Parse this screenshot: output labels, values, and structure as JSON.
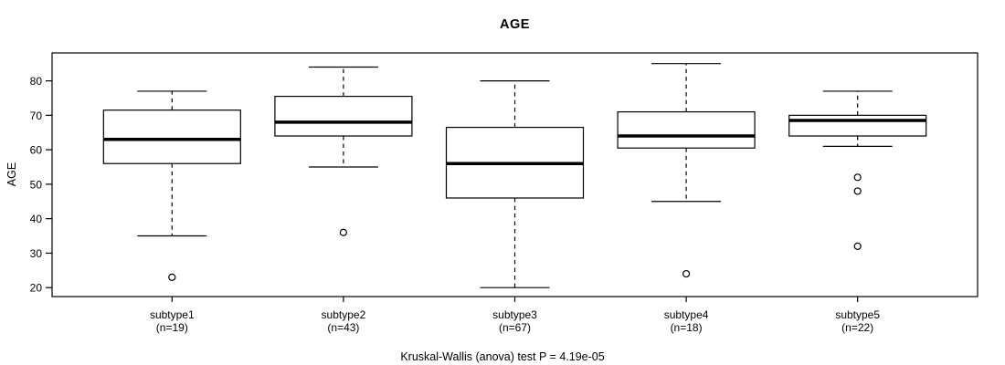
{
  "colors": {
    "background": "#ffffff",
    "line": "#000000",
    "box_fill": "#ffffff",
    "text": "#000000"
  },
  "chart_data": {
    "type": "boxplot",
    "title": "AGE",
    "xlabel": "",
    "ylabel": "AGE",
    "caption": "Kruskal-Wallis (anova) test P = 4.19e-05",
    "p_value": "4.19e-05",
    "ylim": [
      17.4,
      88.1
    ],
    "yticks": [
      20,
      30,
      40,
      50,
      60,
      70,
      80
    ],
    "grid": false,
    "legend": "none",
    "groups": [
      {
        "label": "subtype1",
        "n_label": "(n=19)",
        "n": 19,
        "whisker_low": 35,
        "q1": 56,
        "median": 63,
        "q3": 71.5,
        "whisker_high": 77,
        "outliers": [
          23
        ]
      },
      {
        "label": "subtype2",
        "n_label": "(n=43)",
        "n": 43,
        "whisker_low": 55,
        "q1": 64,
        "median": 68,
        "q3": 75.5,
        "whisker_high": 84,
        "outliers": [
          36
        ]
      },
      {
        "label": "subtype3",
        "n_label": "(n=67)",
        "n": 67,
        "whisker_low": 20,
        "q1": 46,
        "median": 56,
        "q3": 66.5,
        "whisker_high": 80,
        "outliers": []
      },
      {
        "label": "subtype4",
        "n_label": "(n=18)",
        "n": 18,
        "whisker_low": 45,
        "q1": 60.5,
        "median": 64,
        "q3": 71,
        "whisker_high": 85,
        "outliers": [
          24
        ]
      },
      {
        "label": "subtype5",
        "n_label": "(n=22)",
        "n": 22,
        "whisker_low": 61,
        "q1": 64,
        "median": 68.5,
        "q3": 70,
        "whisker_high": 77,
        "outliers": [
          52,
          48,
          32
        ]
      }
    ]
  }
}
